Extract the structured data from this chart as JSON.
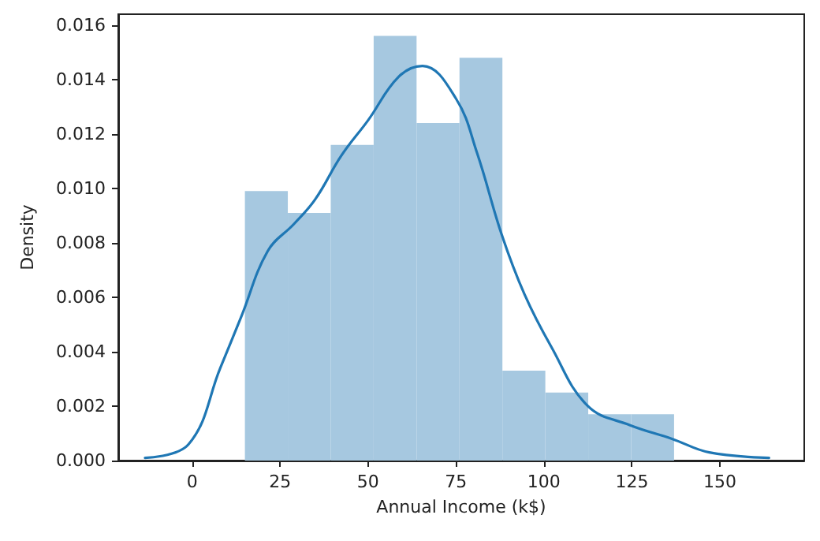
{
  "chart_data": {
    "type": "histogram",
    "xlabel": "Annual Income (k$)",
    "ylabel": "Density",
    "bins": [
      15,
      27.2,
      39.4,
      51.6,
      63.8,
      76,
      88.2,
      100.4,
      112.6,
      124.8,
      137
    ],
    "values": [
      0.0099,
      0.0091,
      0.0116,
      0.0156,
      0.0124,
      0.0148,
      0.0033,
      0.0025,
      0.0017,
      0.0017
    ],
    "color": "#a6c8e0",
    "series": [
      {
        "type": "line",
        "color": "#1f77b4",
        "x": [
          -13.4,
          -1,
          8,
          14,
          21.5,
          29,
          35,
          42.4,
          50,
          58.7,
          65.5,
          75,
          81,
          88,
          94.5,
          102,
          112.5,
          124.5,
          136.4,
          147,
          164
        ],
        "values": [
          0.0001,
          0.0006,
          0.0034,
          0.0053,
          0.0077,
          0.0087,
          0.0096,
          0.0112,
          0.0125,
          0.0141,
          0.0145,
          0.0133,
          0.0113,
          0.0083,
          0.0061,
          0.0042,
          0.002,
          0.0013,
          0.0008,
          0.0003,
          0.0001
        ]
      }
    ],
    "xlim": [
      -21,
      174
    ],
    "ylim": [
      0,
      0.0164
    ],
    "xticks": [
      0,
      25,
      50,
      75,
      100,
      125,
      150
    ],
    "yticks": [
      {
        "value": 0,
        "label": "0.000"
      },
      {
        "value": 0.002,
        "label": "0.002"
      },
      {
        "value": 0.004,
        "label": "0.004"
      },
      {
        "value": 0.006,
        "label": "0.006"
      },
      {
        "value": 0.008,
        "label": "0.008"
      },
      {
        "value": 0.01,
        "label": "0.010"
      },
      {
        "value": 0.012,
        "label": "0.012"
      },
      {
        "value": 0.014,
        "label": "0.014"
      },
      {
        "value": 0.016,
        "label": "0.016"
      }
    ],
    "marker": "none",
    "line_style": "solid"
  }
}
